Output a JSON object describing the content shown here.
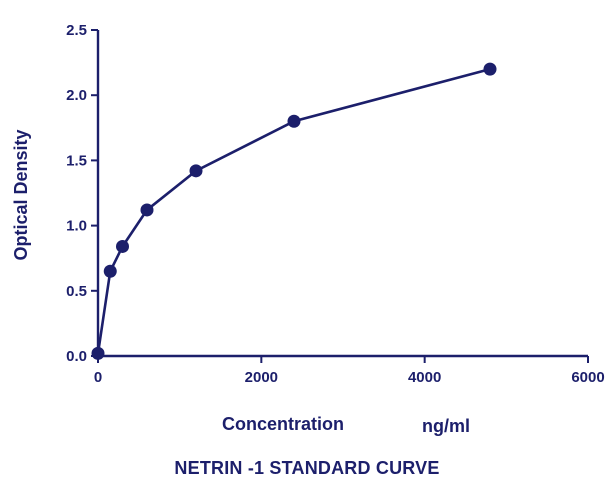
{
  "chart_data": {
    "type": "line",
    "title": "",
    "xlabel": "Concentration",
    "xlabel_unit": "ng/ml",
    "ylabel": "Optical Density",
    "caption": "NETRIN -1 STANDARD CURVE",
    "xlim": [
      0,
      6000
    ],
    "ylim": [
      0,
      2.5
    ],
    "x_ticks": [
      "0",
      "2000",
      "4000",
      "6000"
    ],
    "y_ticks": [
      "0.0",
      "0.5",
      "1.0",
      "1.5",
      "2.0",
      "2.5"
    ],
    "grid": false,
    "series": [
      {
        "x": [
          0,
          150,
          300,
          600,
          1200,
          2400,
          4800
        ],
        "y": [
          0.02,
          0.65,
          0.84,
          1.12,
          1.42,
          1.8,
          2.2
        ]
      }
    ],
    "colors": {
      "primary": "#1c1f6b"
    }
  }
}
